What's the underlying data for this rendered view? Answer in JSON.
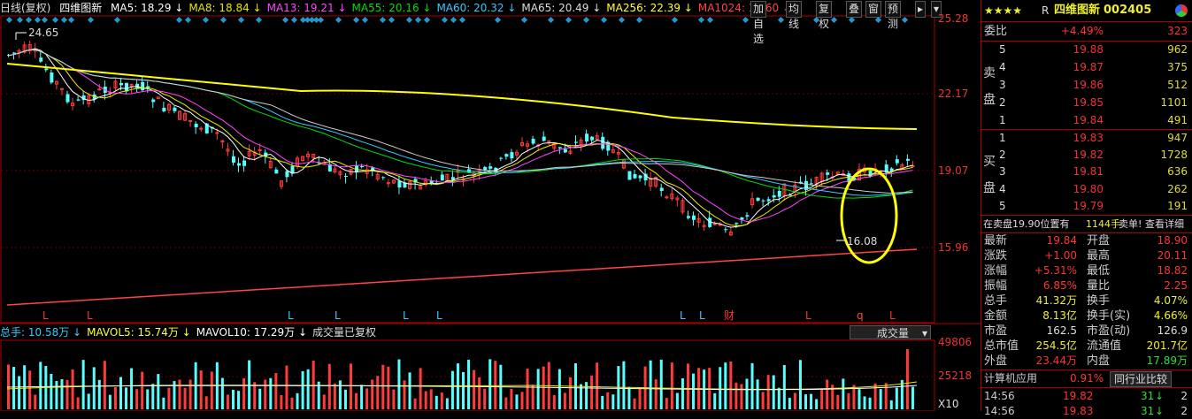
{
  "header": {
    "period": "日线(复权)",
    "stock_name": "四维图新",
    "ma": [
      {
        "label": "MA5: 18.29",
        "color": "#ffffff"
      },
      {
        "label": "MA8: 18.84",
        "color": "#e6e600"
      },
      {
        "label": "MA13: 19.21",
        "color": "#ff44ff"
      },
      {
        "label": "MA55: 20.16",
        "color": "#00dd00"
      },
      {
        "label": "MA60: 20.32",
        "color": "#33ccff"
      },
      {
        "label": "MA65: 20.49",
        "color": "#dddddd"
      },
      {
        "label": "MA256: 22.39",
        "color": "#ffff33"
      },
      {
        "label": "MA1024: 14.60",
        "color": "#ff4444"
      }
    ],
    "toolbar": [
      "加自选",
      "均线",
      "复权",
      "叠",
      "窗",
      "预测"
    ],
    "toolbar_arrow": "▸",
    "toolbar_menu": "▾"
  },
  "price_axis": [
    "25.28",
    "22.17",
    "19.07",
    "15.96"
  ],
  "annotations": {
    "high": "24.65",
    "low": "16.08"
  },
  "event_markers": [
    "L",
    "L",
    "L",
    "L",
    "L",
    "L",
    "L",
    "L",
    "财",
    "L",
    "q",
    "L"
  ],
  "volume": {
    "stats": [
      {
        "label": "总手: 10.58万",
        "color": "#33ccff"
      },
      {
        "label": "MAVOL5: 15.74万",
        "color": "#ffff33"
      },
      {
        "label": "MAVOL10: 17.29万",
        "color": "#ffffff"
      },
      {
        "label": "成交量已复权",
        "color": "#dddddd"
      }
    ],
    "selector": "成交量",
    "axis": [
      "49806",
      "25218",
      "X10"
    ]
  },
  "quote": {
    "stars": "★★★★",
    "rating": "R",
    "name": "四维图新",
    "code": "002405",
    "weibi_label": "委比",
    "weibi_value": "+4.49%",
    "weibi_count": "323",
    "sell_label": [
      "卖",
      "盘"
    ],
    "buy_label": [
      "买",
      "盘"
    ],
    "sell": [
      {
        "level": "5",
        "price": "19.88",
        "vol": "962"
      },
      {
        "level": "4",
        "price": "19.87",
        "vol": "375"
      },
      {
        "level": "3",
        "price": "19.86",
        "vol": "512"
      },
      {
        "level": "2",
        "price": "19.85",
        "vol": "1101"
      },
      {
        "level": "1",
        "price": "19.84",
        "vol": "491"
      }
    ],
    "buy": [
      {
        "level": "1",
        "price": "19.83",
        "vol": "947"
      },
      {
        "level": "2",
        "price": "19.82",
        "vol": "1728"
      },
      {
        "level": "3",
        "price": "19.81",
        "vol": "636"
      },
      {
        "level": "4",
        "price": "19.80",
        "vol": "262"
      },
      {
        "level": "5",
        "price": "19.79",
        "vol": "191"
      }
    ],
    "notice": "在卖盘19.90位置有",
    "notice_vol": "1144手",
    "notice_tag": "卖单!",
    "notice_link": "查看详细",
    "stats": [
      {
        "l1": "最新",
        "v1": "19.84",
        "c1": "red",
        "l2": "开盘",
        "v2": "18.90",
        "c2": "red"
      },
      {
        "l1": "涨跌",
        "v1": "+1.00",
        "c1": "red",
        "l2": "最高",
        "v2": "20.11",
        "c2": "red"
      },
      {
        "l1": "涨幅",
        "v1": "+5.31%",
        "c1": "red",
        "l2": "最低",
        "v2": "18.82",
        "c2": "red"
      },
      {
        "l1": "振幅",
        "v1": "6.85%",
        "c1": "red",
        "l2": "量比",
        "v2": "2.25",
        "c2": "red"
      },
      {
        "l1": "总手",
        "v1": "41.32万",
        "c1": "yellow",
        "l2": "换手",
        "v2": "4.07%",
        "c2": "yellow"
      },
      {
        "l1": "金额",
        "v1": "8.13亿",
        "c1": "yellow",
        "l2": "换手(实)",
        "v2": "4.66%",
        "c2": "yellow"
      },
      {
        "l1": "市盈",
        "v1": "162.5",
        "c1": "white",
        "l2": "市盈(动)",
        "v2": "126.9",
        "c2": "white"
      },
      {
        "l1": "总市值",
        "v1": "254.5亿",
        "c1": "yellow",
        "l2": "流通值",
        "v2": "201.7亿",
        "c2": "yellow"
      },
      {
        "l1": "外盘",
        "v1": "23.44万",
        "c1": "red",
        "l2": "内盘",
        "v2": "17.89万",
        "c2": "green"
      }
    ],
    "sector_name": "计算机应用",
    "sector_pct": "0.91%",
    "sector_btn": "同行业比较",
    "ticks": [
      {
        "time": "14:56",
        "price": "19.82",
        "vol": "31",
        "dir": "↓",
        "num": "2"
      },
      {
        "time": "14:56",
        "price": "19.83",
        "vol": "31",
        "dir": "↓",
        "num": "2"
      }
    ]
  }
}
